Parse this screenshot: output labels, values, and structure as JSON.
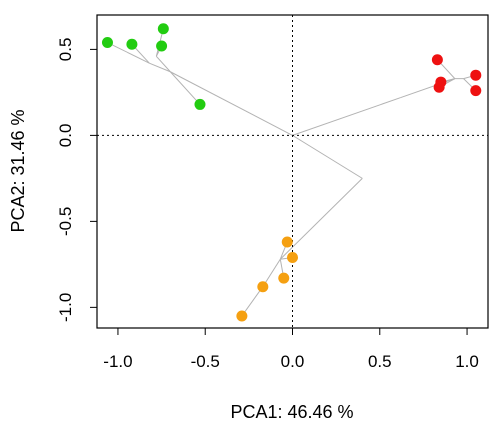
{
  "chart_data": {
    "type": "scatter",
    "title": "",
    "xlabel": "PCA1: 46.46 %",
    "ylabel": "PCA2: 31.46 %",
    "xlim": [
      -1.12,
      1.12
    ],
    "ylim": [
      -1.12,
      0.7
    ],
    "xticks": [
      -1.0,
      -0.5,
      0.0,
      0.5,
      1.0
    ],
    "yticks": [
      -1.0,
      -0.5,
      0.0,
      0.5
    ],
    "xtick_labels": [
      "-1.0",
      "-0.5",
      "0.0",
      "0.5",
      "1.0"
    ],
    "ytick_labels": [
      "-1.0",
      "-0.5",
      "0.0",
      "0.5"
    ],
    "reference_lines": {
      "x": 0,
      "y": 0,
      "style": "dotted"
    },
    "series": [
      {
        "color": "#22cc11",
        "points": [
          [
            -1.06,
            0.54
          ],
          [
            -0.92,
            0.53
          ],
          [
            -0.74,
            0.62
          ],
          [
            -0.75,
            0.52
          ],
          [
            -0.53,
            0.18
          ]
        ]
      },
      {
        "color": "#ee1111",
        "points": [
          [
            0.83,
            0.44
          ],
          [
            0.85,
            0.31
          ],
          [
            0.84,
            0.28
          ],
          [
            1.05,
            0.35
          ],
          [
            1.05,
            0.26
          ]
        ]
      },
      {
        "color": "#f5a011",
        "points": [
          [
            -0.03,
            -0.62
          ],
          [
            0.0,
            -0.71
          ],
          [
            -0.05,
            -0.83
          ],
          [
            -0.17,
            -0.88
          ],
          [
            -0.29,
            -1.05
          ]
        ]
      }
    ],
    "tree_segments": [
      [
        [
          0.0,
          0.0
        ],
        [
          -0.7,
          0.37
        ]
      ],
      [
        [
          0.0,
          0.0
        ],
        [
          0.62,
          0.22
        ]
      ],
      [
        [
          0.0,
          0.0
        ],
        [
          0.4,
          -0.25
        ]
      ],
      [
        [
          0.4,
          -0.25
        ],
        [
          -0.07,
          -0.72
        ]
      ],
      [
        [
          -0.7,
          0.37
        ],
        [
          -0.82,
          0.42
        ]
      ],
      [
        [
          -0.82,
          0.42
        ],
        [
          -1.06,
          0.54
        ]
      ],
      [
        [
          -0.82,
          0.42
        ],
        [
          -0.92,
          0.53
        ]
      ],
      [
        [
          -0.7,
          0.37
        ],
        [
          -0.78,
          0.46
        ]
      ],
      [
        [
          -0.78,
          0.46
        ],
        [
          -0.74,
          0.62
        ]
      ],
      [
        [
          -0.78,
          0.46
        ],
        [
          -0.75,
          0.52
        ]
      ],
      [
        [
          -0.7,
          0.37
        ],
        [
          -0.53,
          0.18
        ]
      ],
      [
        [
          0.62,
          0.22
        ],
        [
          0.93,
          0.33
        ]
      ],
      [
        [
          0.93,
          0.33
        ],
        [
          0.83,
          0.44
        ]
      ],
      [
        [
          0.93,
          0.33
        ],
        [
          0.85,
          0.31
        ]
      ],
      [
        [
          0.93,
          0.33
        ],
        [
          0.84,
          0.28
        ]
      ],
      [
        [
          0.93,
          0.33
        ],
        [
          0.98,
          0.33
        ]
      ],
      [
        [
          0.98,
          0.33
        ],
        [
          1.05,
          0.35
        ]
      ],
      [
        [
          0.98,
          0.33
        ],
        [
          1.05,
          0.26
        ]
      ],
      [
        [
          -0.07,
          -0.72
        ],
        [
          -0.03,
          -0.62
        ]
      ],
      [
        [
          -0.07,
          -0.72
        ],
        [
          0.0,
          -0.71
        ]
      ],
      [
        [
          -0.07,
          -0.72
        ],
        [
          -0.05,
          -0.83
        ]
      ],
      [
        [
          -0.07,
          -0.72
        ],
        [
          -0.17,
          -0.88
        ]
      ],
      [
        [
          -0.17,
          -0.88
        ],
        [
          -0.29,
          -1.05
        ]
      ]
    ]
  }
}
